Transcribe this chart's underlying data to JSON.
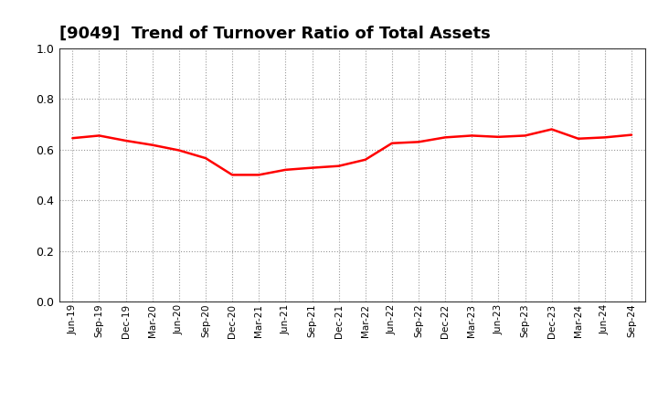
{
  "title": "[9049]  Trend of Turnover Ratio of Total Assets",
  "title_fontsize": 13,
  "line_color": "#FF0000",
  "line_width": 1.8,
  "background_color": "#FFFFFF",
  "grid_color": "#999999",
  "ylim": [
    0.0,
    1.0
  ],
  "yticks": [
    0.0,
    0.2,
    0.4,
    0.6,
    0.8,
    1.0
  ],
  "x_labels": [
    "Jun-19",
    "Sep-19",
    "Dec-19",
    "Mar-20",
    "Jun-20",
    "Sep-20",
    "Dec-20",
    "Mar-21",
    "Jun-21",
    "Sep-21",
    "Dec-21",
    "Mar-22",
    "Jun-22",
    "Sep-22",
    "Dec-22",
    "Mar-23",
    "Jun-23",
    "Sep-23",
    "Dec-23",
    "Mar-24",
    "Jun-24",
    "Sep-24"
  ],
  "values": [
    0.645,
    0.655,
    0.635,
    0.618,
    0.597,
    0.566,
    0.5,
    0.5,
    0.52,
    0.528,
    0.535,
    0.56,
    0.625,
    0.63,
    0.648,
    0.655,
    0.65,
    0.655,
    0.68,
    0.643,
    0.648,
    0.658
  ]
}
